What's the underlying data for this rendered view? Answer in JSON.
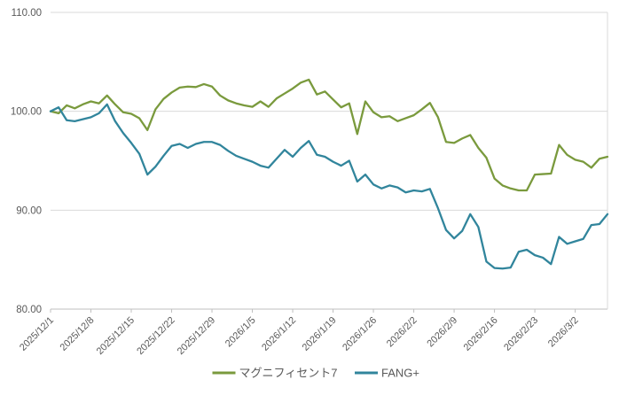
{
  "chart_data": {
    "type": "line",
    "title": "",
    "xlabel": "",
    "ylabel": "",
    "ylim": [
      80,
      110
    ],
    "y_ticks": [
      {
        "value": 80,
        "label": "80.00"
      },
      {
        "value": 90,
        "label": "90.00"
      },
      {
        "value": 100,
        "label": "100.00"
      },
      {
        "value": 110,
        "label": "110.00"
      }
    ],
    "grid": true,
    "legend_position": "bottom",
    "x_tick_labels": [
      "2025/12/1",
      "2025/12/8",
      "2025/12/15",
      "2025/12/22",
      "2025/12/29",
      "2026/1/5",
      "2026/1/12",
      "2026/1/19",
      "2026/1/26",
      "2026/2/2",
      "2026/2/9",
      "2026/2/16",
      "2026/2/23",
      "2026/3/2"
    ],
    "x_tick_every": 5,
    "dates": [
      "2025/12/1",
      "2025/12/2",
      "2025/12/3",
      "2025/12/4",
      "2025/12/5",
      "2025/12/8",
      "2025/12/9",
      "2025/12/10",
      "2025/12/11",
      "2025/12/12",
      "2025/12/15",
      "2025/12/16",
      "2025/12/17",
      "2025/12/18",
      "2025/12/19",
      "2025/12/22",
      "2025/12/23",
      "2025/12/24",
      "2025/12/25",
      "2025/12/26",
      "2025/12/29",
      "2025/12/30",
      "2025/12/31",
      "2026/1/1",
      "2026/1/2",
      "2026/1/5",
      "2026/1/6",
      "2026/1/7",
      "2026/1/8",
      "2026/1/9",
      "2026/1/12",
      "2026/1/13",
      "2026/1/14",
      "2026/1/15",
      "2026/1/16",
      "2026/1/19",
      "2026/1/20",
      "2026/1/21",
      "2026/1/22",
      "2026/1/23",
      "2026/1/26",
      "2026/1/27",
      "2026/1/28",
      "2026/1/29",
      "2026/1/30",
      "2026/2/2",
      "2026/2/3",
      "2026/2/4",
      "2026/2/5",
      "2026/2/6",
      "2026/2/9",
      "2026/2/10",
      "2026/2/11",
      "2026/2/12",
      "2026/2/13",
      "2026/2/16",
      "2026/2/17",
      "2026/2/18",
      "2026/2/19",
      "2026/2/20",
      "2026/2/23",
      "2026/2/24",
      "2026/2/25",
      "2026/2/26",
      "2026/2/27",
      "2026/3/2",
      "2026/3/3",
      "2026/3/4",
      "2026/3/5",
      "2026/3/6"
    ],
    "series": [
      {
        "name": "マグニフィセント7",
        "color": "#7A9A3D",
        "values": [
          100.0,
          99.8,
          100.6,
          100.3,
          100.7,
          101.0,
          100.8,
          101.6,
          100.7,
          99.9,
          99.75,
          99.3,
          98.1,
          100.2,
          101.25,
          101.9,
          102.4,
          102.5,
          102.45,
          102.75,
          102.5,
          101.6,
          101.1,
          100.8,
          100.6,
          100.45,
          101.0,
          100.45,
          101.3,
          101.8,
          102.3,
          102.9,
          103.2,
          101.7,
          102.0,
          101.2,
          100.4,
          100.8,
          97.7,
          101.0,
          99.9,
          99.4,
          99.5,
          99.0,
          99.3,
          99.6,
          100.2,
          100.85,
          99.4,
          96.9,
          96.8,
          97.25,
          97.6,
          96.3,
          95.3,
          93.2,
          92.5,
          92.2,
          92.0,
          92.0,
          93.6,
          93.65,
          93.7,
          96.6,
          95.6,
          95.1,
          94.9,
          94.3,
          95.2,
          95.4
        ]
      },
      {
        "name": "FANG+",
        "color": "#31859C",
        "values": [
          100.0,
          100.4,
          99.1,
          99.0,
          99.2,
          99.4,
          99.8,
          100.7,
          99.0,
          97.8,
          96.8,
          95.7,
          93.6,
          94.4,
          95.5,
          96.5,
          96.7,
          96.3,
          96.7,
          96.9,
          96.9,
          96.6,
          96.0,
          95.5,
          95.2,
          94.9,
          94.5,
          94.3,
          95.2,
          96.1,
          95.4,
          96.3,
          97.0,
          95.6,
          95.4,
          94.9,
          94.5,
          95.0,
          92.9,
          93.6,
          92.6,
          92.2,
          92.5,
          92.3,
          91.8,
          92.0,
          91.9,
          92.15,
          90.2,
          88.0,
          87.15,
          87.9,
          89.6,
          88.3,
          84.8,
          84.15,
          84.1,
          84.2,
          85.8,
          86.0,
          85.45,
          85.2,
          84.55,
          87.3,
          86.6,
          86.85,
          87.1,
          88.5,
          88.6,
          89.6
        ]
      }
    ],
    "colors": {
      "grid": "#D9D9D9",
      "axis": "#BFBFBF",
      "plot_border": "#D9D9D9",
      "label": "#595959",
      "background": "#FFFFFF"
    }
  }
}
